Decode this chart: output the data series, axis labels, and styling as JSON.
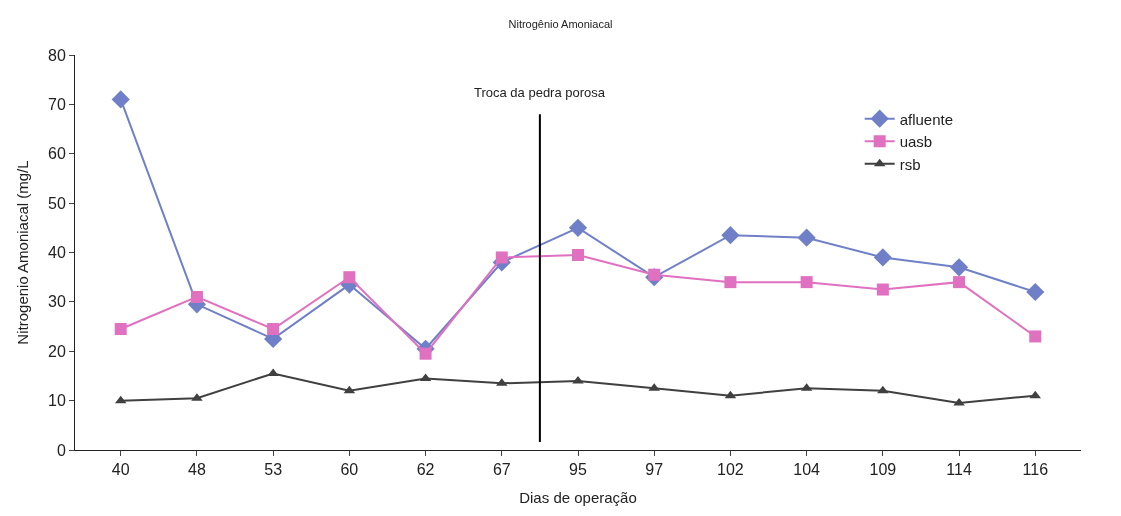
{
  "chart_data": {
    "type": "line",
    "title": "Nitrogênio Amoniacal",
    "xlabel": "Dias de operação",
    "ylabel": "Nitrogenio Amoniacal (mg/L",
    "categories": [
      "40",
      "48",
      "53",
      "60",
      "62",
      "67",
      "95",
      "97",
      "102",
      "104",
      "109",
      "114",
      "116"
    ],
    "series": [
      {
        "name": "afluente",
        "color": "#7080c8",
        "marker": "diamond",
        "values": [
          71,
          29.5,
          22.5,
          33.5,
          20.5,
          38,
          45,
          35,
          43.5,
          43,
          39,
          37,
          32
        ]
      },
      {
        "name": "uasb",
        "color": "#e070c0",
        "marker": "square",
        "values": [
          24.5,
          31,
          24.5,
          35,
          19.5,
          39,
          39.5,
          35.5,
          34,
          34,
          32.5,
          34,
          23
        ]
      },
      {
        "name": "rsb",
        "color": "#404040",
        "marker": "triangle",
        "values": [
          10,
          10.5,
          15.5,
          12,
          14.5,
          13.5,
          14,
          12.5,
          11,
          12.5,
          12,
          9.5,
          11
        ]
      }
    ],
    "ylim": [
      0,
      80
    ],
    "yticks": [
      0,
      10,
      20,
      30,
      40,
      50,
      60,
      70,
      80
    ],
    "annotations": [
      "Troca da pedra porosa"
    ],
    "legend": "top right"
  }
}
